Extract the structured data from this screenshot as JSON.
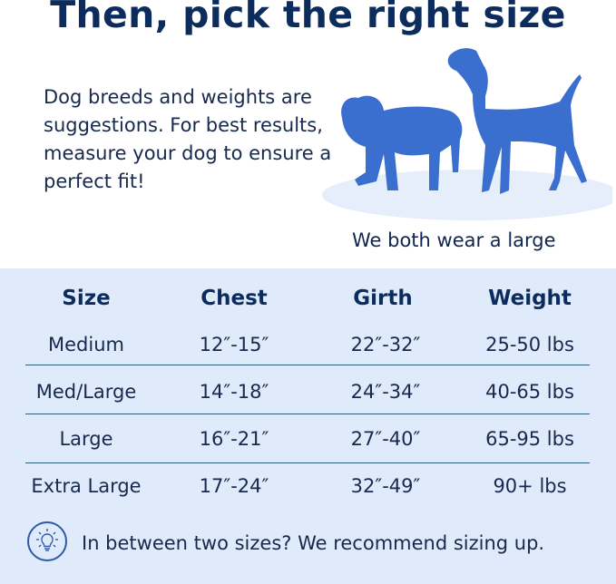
{
  "title": "Then, pick the right size",
  "intro": "Dog breeds and weights are suggestions. For best results, measure your dog to ensure a perfect fit!",
  "caption": "We both wear a large",
  "colors": {
    "navy": "#0d2c5e",
    "dog_blue": "#3a6fd0",
    "panel_bg": "#dfeafb"
  },
  "table": {
    "headers": [
      "Size",
      "Chest",
      "Girth",
      "Weight"
    ],
    "rows": [
      [
        "Medium",
        "12″-15″",
        "22″-32″",
        "25-50 lbs"
      ],
      [
        "Med/Large",
        "14″-18″",
        "24″-34″",
        "40-65 lbs"
      ],
      [
        "Large",
        "16″-21″",
        "27″-40″",
        "65-95 lbs"
      ],
      [
        "Extra Large",
        "17″-24″",
        "32″-49″",
        "90+ lbs"
      ]
    ]
  },
  "tip": {
    "icon": "lightbulb-icon",
    "text": "In between two sizes? We recommend sizing up."
  }
}
